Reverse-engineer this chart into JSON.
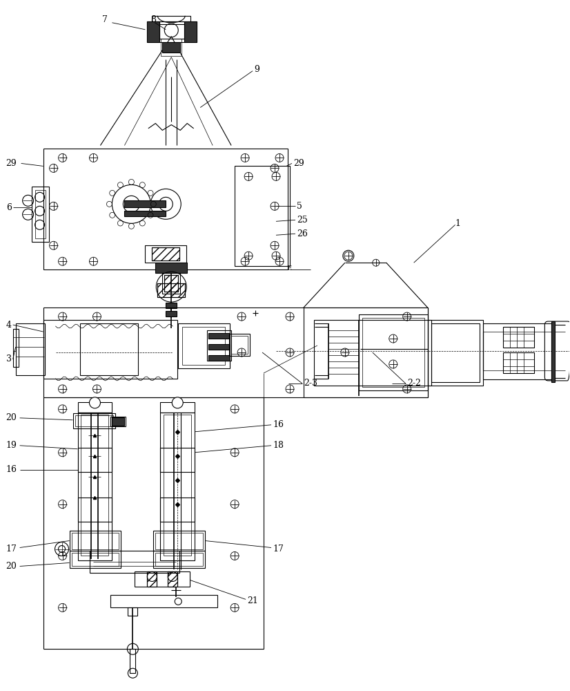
{
  "bg_color": "#ffffff",
  "lc": "#000000",
  "lw_main": 0.8,
  "lw_thick": 1.2,
  "lw_thin": 0.5,
  "ann_fs": 9
}
